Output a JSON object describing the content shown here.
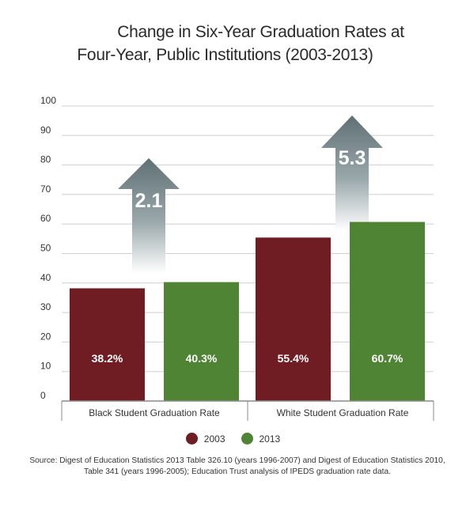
{
  "chart_data": {
    "type": "bar",
    "title_line1": "Change in Six-Year Graduation Rates at",
    "title_line2": "Four-Year, Public Institutions (2003-2013)",
    "categories": [
      "Black Student Graduation Rate",
      "White Student Graduation Rate"
    ],
    "series": [
      {
        "name": "2003",
        "values": [
          38.2,
          55.4
        ],
        "labels": [
          "38.2%",
          "55.4%"
        ],
        "color": "#6f1d22"
      },
      {
        "name": "2013",
        "values": [
          40.3,
          60.7
        ],
        "labels": [
          "40.3%",
          "60.7%"
        ],
        "color": "#4f8434"
      }
    ],
    "changes": [
      {
        "category": "Black Student Graduation Rate",
        "label": "2.1"
      },
      {
        "category": "White Student Graduation Rate",
        "label": "5.3"
      }
    ],
    "ylim": [
      0,
      100
    ],
    "yticks": [
      0,
      10,
      20,
      30,
      40,
      50,
      60,
      70,
      80,
      90,
      100
    ],
    "grid": true,
    "legend_position": "bottom",
    "source": "Source: Digest of Education Statistics 2013 Table 326.10 (years 1996-2007) and Digest of Education Statistics 2010, Table 341 (years 1996-2005); Education Trust analysis of IPEDS graduation rate data."
  }
}
